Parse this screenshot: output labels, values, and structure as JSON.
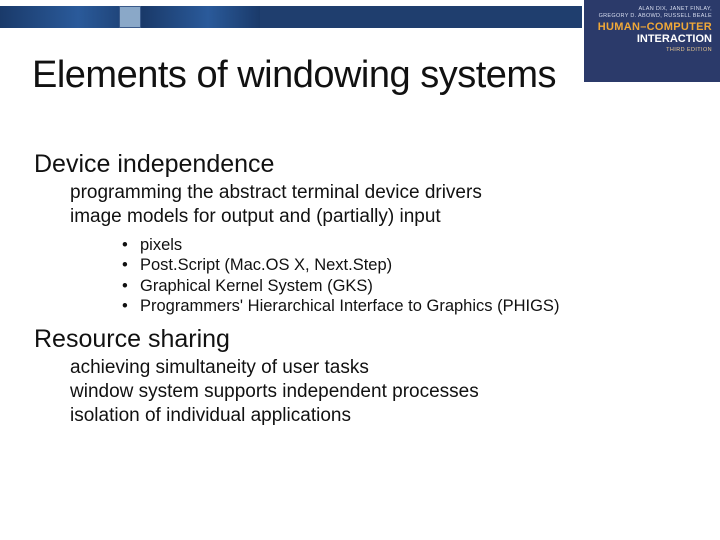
{
  "header": {
    "authors_line1": "ALAN DIX, JANET FINLAY,",
    "authors_line2": "GREGORY D. ABOWD, RUSSELL BEALE",
    "book_title_1": "HUMAN–COMPUTER",
    "book_title_2": "INTERACTION",
    "edition": "THIRD EDITION",
    "colors": {
      "badge_bg": "#2b3a6a",
      "title_accent": "#f0a838",
      "bar_bg": "#1f3e6e"
    }
  },
  "slide": {
    "title": "Elements of windowing systems",
    "title_fontsize_pt": 29,
    "section1": {
      "heading": "Device independence",
      "lines": [
        "programming the abstract terminal device drivers",
        "image models for output and (partially) input"
      ],
      "bullets": [
        "pixels",
        "Post.Script  (Mac.OS X, Next.Step)",
        "Graphical Kernel System (GKS)",
        "Programmers' Hierarchical Interface to Graphics (PHIGS)"
      ]
    },
    "section2": {
      "heading": "Resource sharing",
      "lines": [
        "achieving simultaneity of user tasks",
        "window system supports independent processes",
        "isolation of individual applications"
      ]
    },
    "text_color": "#111111",
    "background_color": "#ffffff"
  }
}
